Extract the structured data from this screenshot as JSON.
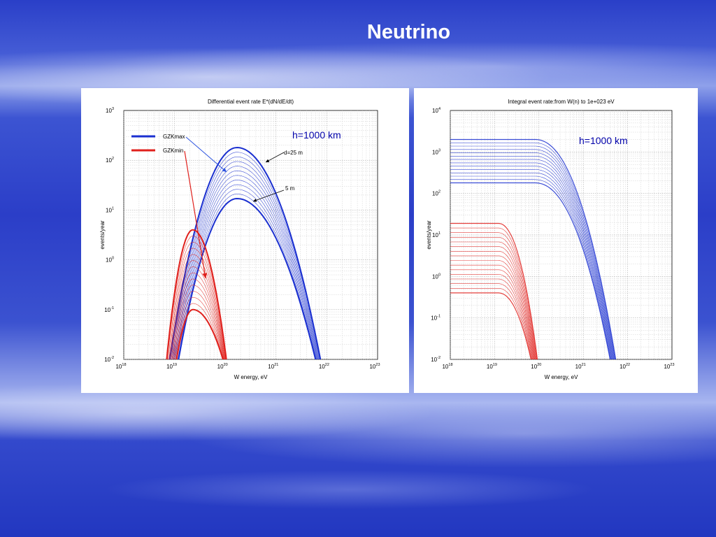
{
  "slide": {
    "title": "Neutrino"
  },
  "colors": {
    "gzkmax": "#1a2fd0",
    "gzkmin": "#e0201c",
    "annotation": "#0000aa"
  },
  "chart_data": [
    {
      "type": "line",
      "title": "Differential event rate E*(dN/dE/dt)",
      "xlabel": "W energy, eV",
      "ylabel": "events/year",
      "xscale": "log",
      "yscale": "log",
      "xlim": [
        1e+18,
        1e+23
      ],
      "ylim": [
        0.01,
        1000
      ],
      "xticks": [
        {
          "base": "10",
          "exp": "18"
        },
        {
          "base": "10",
          "exp": "19"
        },
        {
          "base": "10",
          "exp": "20"
        },
        {
          "base": "10",
          "exp": "21"
        },
        {
          "base": "10",
          "exp": "22"
        },
        {
          "base": "10",
          "exp": "23"
        }
      ],
      "yticks": [
        {
          "base": "10",
          "exp": "-2"
        },
        {
          "base": "10",
          "exp": "-1"
        },
        {
          "base": "10",
          "exp": "0"
        },
        {
          "base": "10",
          "exp": "1"
        },
        {
          "base": "10",
          "exp": "2"
        },
        {
          "base": "10",
          "exp": "3"
        }
      ],
      "grid": true,
      "legend": {
        "placement": "top-left",
        "entries": [
          {
            "label": "GZKmax",
            "color": "#1a2fd0"
          },
          {
            "label": "GZKmin",
            "color": "#e0201c"
          }
        ]
      },
      "annotations": {
        "h_label": "h=1000 km",
        "d_label": "d=25 m",
        "m_label": "5 m"
      },
      "families": [
        {
          "series_name": "GZKmax",
          "color": "#1a2fd0",
          "count": 12,
          "peak_x": 1.7e+20,
          "peak_top": 180,
          "peak_bottom": 17,
          "x_range_top": [
            8e+18,
            7.5e+21
          ],
          "x_range_bottom": [
            1.2e+19,
            6e+21
          ]
        },
        {
          "series_name": "GZKmin",
          "color": "#e0201c",
          "count": 14,
          "peak_x": 2.3e+19,
          "peak_top": 4,
          "peak_bottom": 0.1,
          "x_range_top": [
            7e+18,
            1.05e+20
          ],
          "x_range_bottom": [
            1.1e+19,
            9e+19
          ]
        }
      ]
    },
    {
      "type": "line",
      "title": "Integral event rate:from W(n) to 1e+023 eV",
      "xlabel": "W energy, eV",
      "ylabel": "events/year",
      "xscale": "log",
      "yscale": "log",
      "xlim": [
        1e+18,
        1e+23
      ],
      "ylim": [
        0.01,
        10000
      ],
      "xticks": [
        {
          "base": "10",
          "exp": "18"
        },
        {
          "base": "10",
          "exp": "19"
        },
        {
          "base": "10",
          "exp": "20"
        },
        {
          "base": "10",
          "exp": "21"
        },
        {
          "base": "10",
          "exp": "22"
        },
        {
          "base": "10",
          "exp": "23"
        }
      ],
      "yticks": [
        {
          "base": "10",
          "exp": "-2"
        },
        {
          "base": "10",
          "exp": "-1"
        },
        {
          "base": "10",
          "exp": "0"
        },
        {
          "base": "10",
          "exp": "1"
        },
        {
          "base": "10",
          "exp": "2"
        },
        {
          "base": "10",
          "exp": "3"
        },
        {
          "base": "10",
          "exp": "4"
        }
      ],
      "grid": true,
      "annotations": {
        "h_label": "h=1000 km"
      },
      "families": [
        {
          "series_name": "GZKmax",
          "color": "#1a2fd0",
          "count": 14,
          "plateau_top": 2000,
          "plateau_bottom": 180,
          "knee_x": 8e+19,
          "cutoff_x": 6e+21
        },
        {
          "series_name": "GZKmin",
          "color": "#e0201c",
          "count": 16,
          "plateau_top": 19,
          "plateau_bottom": 0.4,
          "knee_x": 1.2e+19,
          "cutoff_x": 1e+20
        }
      ]
    }
  ]
}
